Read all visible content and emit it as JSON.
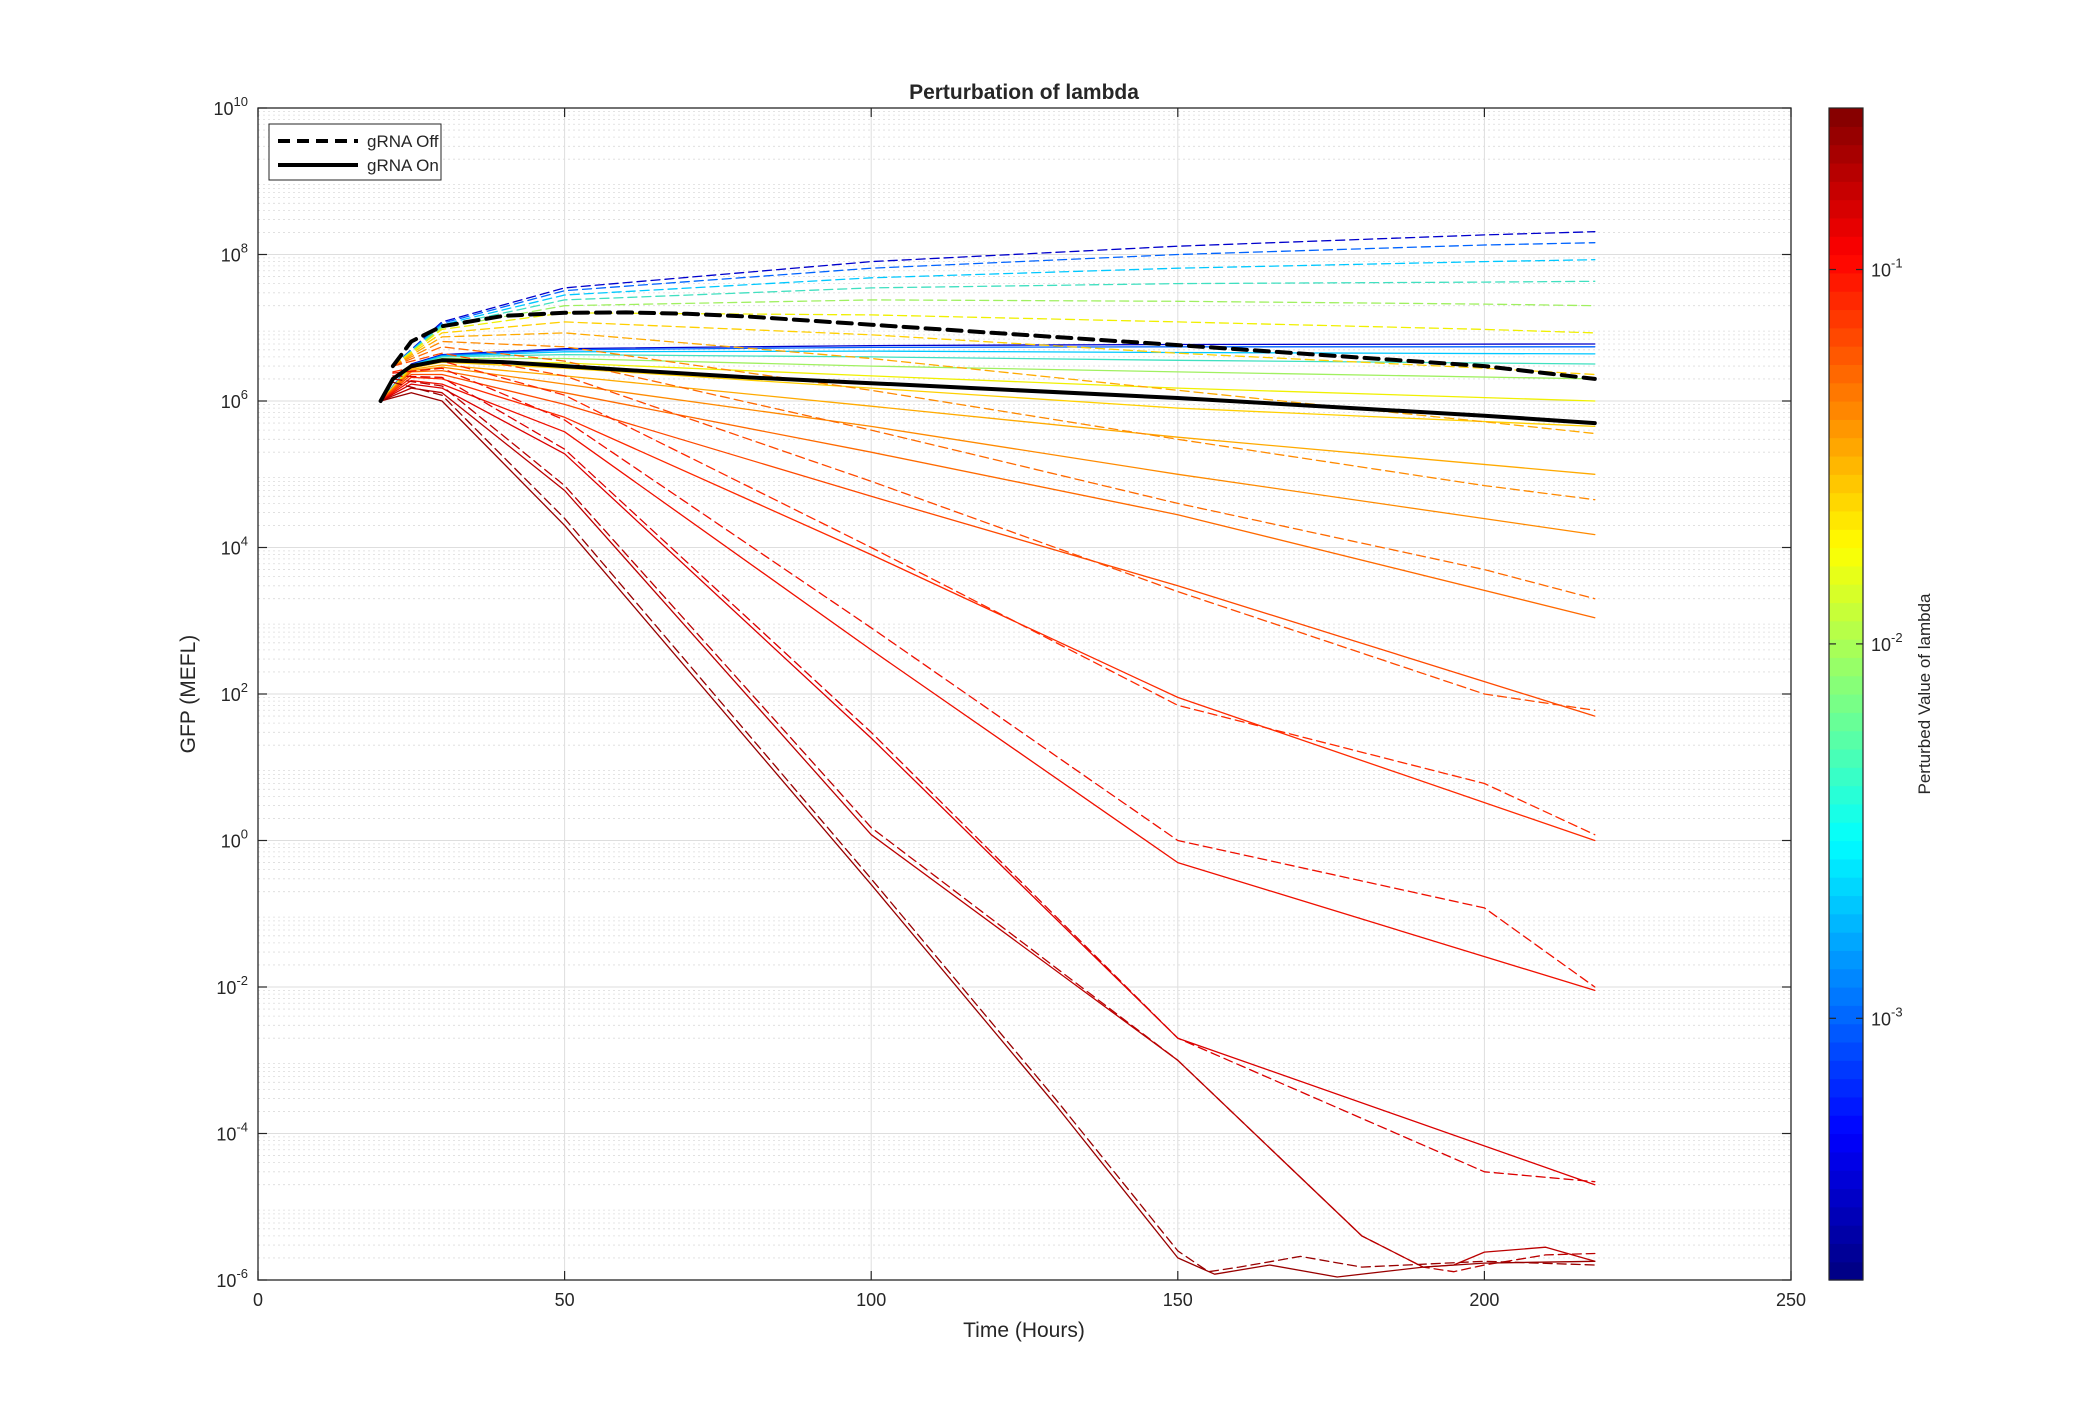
{
  "chart_data": {
    "type": "line",
    "title": "Perturbation of lambda",
    "xlabel": "Time (Hours)",
    "ylabel": "GFP (MEFL)",
    "xlim": [
      0,
      250
    ],
    "ylim": [
      1e-06,
      10000000000.0
    ],
    "yscale": "log",
    "grid": true,
    "minor_grid": true,
    "xticks": [
      0,
      50,
      100,
      150,
      200,
      250
    ],
    "xtick_labels": [
      "0",
      "50",
      "100",
      "150",
      "200",
      "250"
    ],
    "yticks": [
      {
        "base": "10",
        "exp": "-6"
      },
      {
        "base": "10",
        "exp": "-4"
      },
      {
        "base": "10",
        "exp": "-2"
      },
      {
        "base": "10",
        "exp": "0"
      },
      {
        "base": "10",
        "exp": "2"
      },
      {
        "base": "10",
        "exp": "4"
      },
      {
        "base": "10",
        "exp": "6"
      },
      {
        "base": "10",
        "exp": "8"
      },
      {
        "base": "10",
        "exp": "10"
      }
    ],
    "legend": {
      "placement": "top-left",
      "entries": [
        {
          "label": "gRNA Off",
          "style": "dashed",
          "color": "#000000"
        },
        {
          "label": "gRNA On",
          "style": "solid",
          "color": "#000000"
        }
      ]
    },
    "colorbar": {
      "label": "Perturbed Value of lambda",
      "scale": "log",
      "colormap": "jet",
      "range": [
        0.0002,
        0.27
      ],
      "ticks": [
        {
          "value": 0.001,
          "base": "10",
          "exp": "-3"
        },
        {
          "value": 0.01,
          "base": "10",
          "exp": "-2"
        },
        {
          "value": 0.1,
          "base": "10",
          "exp": "-1"
        }
      ]
    },
    "series": [
      {
        "style": "dashed",
        "color": "#000000",
        "bold": true,
        "x": [
          22,
          25,
          30,
          40,
          50,
          60,
          70,
          80,
          100,
          120,
          150,
          200,
          218
        ],
        "y": [
          3000000.0,
          6500000.0,
          10500000.0,
          14500000.0,
          16000000.0,
          16200000.0,
          15500000.0,
          14200000.0,
          11000000.0,
          8500000.0,
          5800000.0,
          3000000.0,
          2000000.0
        ]
      },
      {
        "style": "solid",
        "color": "#000000",
        "bold": true,
        "x": [
          20,
          22,
          25,
          30,
          40,
          50,
          60,
          80,
          100,
          150,
          200,
          218
        ],
        "y": [
          1000000.0,
          2000000.0,
          3000000.0,
          3600000.0,
          3400000.0,
          3000000.0,
          2650000.0,
          2100000.0,
          1750000.0,
          1100000.0,
          630000.0,
          500000.0
        ]
      },
      {
        "style": "dashed",
        "color": "#0000cc",
        "lambda": 0.0002,
        "x": [
          22,
          30,
          50,
          100,
          150,
          200,
          218
        ],
        "y": [
          3000000.0,
          12000000.0,
          35000000.0,
          80000000.0,
          130000000.0,
          185000000.0,
          205000000.0
        ]
      },
      {
        "style": "solid",
        "color": "#0000cc",
        "lambda": 0.0002,
        "x": [
          20,
          25,
          30,
          50,
          100,
          150,
          218
        ],
        "y": [
          1000000.0,
          3200000.0,
          4300000.0,
          5200000.0,
          5700000.0,
          5900000.0,
          6000000.0
        ]
      },
      {
        "style": "dashed",
        "color": "#0064ff",
        "lambda": 0.0008,
        "x": [
          22,
          30,
          50,
          100,
          150,
          200,
          218
        ],
        "y": [
          3000000.0,
          11500000.0,
          32000000.0,
          65000000.0,
          100000000.0,
          135000000.0,
          145000000.0
        ]
      },
      {
        "style": "solid",
        "color": "#0064ff",
        "lambda": 0.0008,
        "x": [
          20,
          25,
          30,
          50,
          100,
          150,
          218
        ],
        "y": [
          1000000.0,
          3100000.0,
          4200000.0,
          5000000.0,
          5400000.0,
          5500000.0,
          5500000.0
        ]
      },
      {
        "style": "dashed",
        "color": "#00c8ff",
        "lambda": 0.002,
        "x": [
          22,
          30,
          50,
          100,
          150,
          200,
          218
        ],
        "y": [
          3000000.0,
          11000000.0,
          28000000.0,
          48000000.0,
          65000000.0,
          80000000.0,
          85000000.0
        ]
      },
      {
        "style": "solid",
        "color": "#00c8ff",
        "lambda": 0.002,
        "x": [
          20,
          25,
          30,
          50,
          100,
          150,
          218
        ],
        "y": [
          1000000.0,
          3100000.0,
          4100000.0,
          4700000.0,
          4800000.0,
          4600000.0,
          4400000.0
        ]
      },
      {
        "style": "dashed",
        "color": "#40e0c0",
        "lambda": 0.004,
        "x": [
          22,
          30,
          50,
          100,
          150,
          200,
          218
        ],
        "y": [
          3000000.0,
          10500000.0,
          24000000.0,
          35000000.0,
          40000000.0,
          42000000.0,
          43000000.0
        ]
      },
      {
        "style": "solid",
        "color": "#40e0c0",
        "lambda": 0.004,
        "x": [
          20,
          25,
          30,
          50,
          100,
          150,
          218
        ],
        "y": [
          1000000.0,
          3000000.0,
          4000000.0,
          4300000.0,
          4000000.0,
          3600000.0,
          3200000.0
        ]
      },
      {
        "style": "dashed",
        "color": "#a0f060",
        "lambda": 0.008,
        "x": [
          22,
          30,
          50,
          100,
          150,
          200,
          218
        ],
        "y": [
          3000000.0,
          10000000.0,
          20000000.0,
          24000000.0,
          23000000.0,
          21000000.0,
          20000000.0
        ]
      },
      {
        "style": "solid",
        "color": "#a0f060",
        "lambda": 0.008,
        "x": [
          20,
          25,
          30,
          50,
          100,
          150,
          218
        ],
        "y": [
          1000000.0,
          3000000.0,
          3800000.0,
          3800000.0,
          3000000.0,
          2500000.0,
          2000000.0
        ]
      },
      {
        "style": "dashed",
        "color": "#f0f000",
        "lambda": 0.016,
        "x": [
          22,
          30,
          50,
          100,
          150,
          200,
          218
        ],
        "y": [
          3000000.0,
          9500000.0,
          16000000.0,
          15000000.0,
          12000000.0,
          9500000.0,
          8500000.0
        ]
      },
      {
        "style": "solid",
        "color": "#f0f000",
        "lambda": 0.016,
        "x": [
          20,
          25,
          30,
          50,
          100,
          150,
          218
        ],
        "y": [
          1000000.0,
          2900000.0,
          3600000.0,
          3300000.0,
          2200000.0,
          1500000.0,
          1000000.0
        ]
      },
      {
        "style": "dashed",
        "color": "#ffd000",
        "lambda": 0.025,
        "x": [
          22,
          30,
          50,
          100,
          150,
          200,
          218
        ],
        "y": [
          3000000.0,
          8500000.0,
          12000000.0,
          8000000.0,
          4500000.0,
          2800000.0,
          2300000.0
        ]
      },
      {
        "style": "solid",
        "color": "#ffd000",
        "lambda": 0.025,
        "x": [
          20,
          25,
          30,
          50,
          100,
          150,
          218
        ],
        "y": [
          1000000.0,
          2800000.0,
          3400000.0,
          2800000.0,
          1500000.0,
          800000.0,
          450000.0
        ]
      },
      {
        "style": "dashed",
        "color": "#ffaa00",
        "lambda": 0.035,
        "x": [
          22,
          30,
          50,
          100,
          150,
          200,
          218
        ],
        "y": [
          3000000.0,
          7500000.0,
          8500000.0,
          3800000.0,
          1400000.0,
          520000.0,
          360000.0
        ]
      },
      {
        "style": "solid",
        "color": "#ffaa00",
        "lambda": 0.035,
        "x": [
          20,
          25,
          30,
          50,
          100,
          150,
          218
        ],
        "y": [
          1000000.0,
          2700000.0,
          3100000.0,
          2200000.0,
          850000.0,
          320000.0,
          100000.0
        ]
      },
      {
        "style": "dashed",
        "color": "#ff8a00",
        "lambda": 0.045,
        "x": [
          22,
          30,
          50,
          100,
          150,
          200,
          218
        ],
        "y": [
          3000000.0,
          6500000.0,
          5500000.0,
          1400000.0,
          300000.0,
          70000.0,
          45000.0
        ]
      },
      {
        "style": "solid",
        "color": "#ff8a00",
        "lambda": 0.045,
        "x": [
          20,
          25,
          30,
          50,
          100,
          150,
          218
        ],
        "y": [
          1000000.0,
          2600000.0,
          2900000.0,
          1700000.0,
          450000.0,
          100000.0,
          15000.0
        ]
      },
      {
        "style": "dashed",
        "color": "#ff6a00",
        "lambda": 0.06,
        "x": [
          22,
          30,
          50,
          100,
          150,
          200,
          218
        ],
        "y": [
          3000000.0,
          5500000.0,
          3500000.0,
          400000.0,
          40000.0,
          5000.0,
          2000.0
        ]
      },
      {
        "style": "solid",
        "color": "#ff6a00",
        "lambda": 0.06,
        "x": [
          20,
          25,
          30,
          50,
          100,
          150,
          218
        ],
        "y": [
          1000000.0,
          2500000.0,
          2600000.0,
          1300000.0,
          200000.0,
          28000.0,
          1100.0
        ]
      },
      {
        "style": "dashed",
        "color": "#ff4a00",
        "lambda": 0.08,
        "x": [
          22,
          30,
          50,
          100,
          150,
          200,
          218
        ],
        "y": [
          3000000.0,
          4500000.0,
          2200000.0,
          80000.0,
          2500.0,
          100.0,
          60.0
        ]
      },
      {
        "style": "solid",
        "color": "#ff4a00",
        "lambda": 0.08,
        "x": [
          20,
          25,
          30,
          50,
          100,
          150,
          218
        ],
        "y": [
          1000000.0,
          2300000.0,
          2300000.0,
          900000.0,
          50000.0,
          3000.0,
          50.0
        ]
      },
      {
        "style": "dashed",
        "color": "#ff2a00",
        "lambda": 0.1,
        "x": [
          22,
          30,
          50,
          100,
          150,
          200,
          218
        ],
        "y": [
          2500000.0,
          3500000.0,
          1200000.0,
          10000.0,
          70.0,
          6.0,
          1.2
        ]
      },
      {
        "style": "solid",
        "color": "#ff2a00",
        "lambda": 0.1,
        "x": [
          20,
          25,
          30,
          50,
          100,
          150,
          218
        ],
        "y": [
          1000000.0,
          2100000.0,
          2000000.0,
          600000.0,
          8000.0,
          90.0,
          1.0
        ]
      },
      {
        "style": "dashed",
        "color": "#f01000",
        "lambda": 0.13,
        "x": [
          22,
          30,
          50,
          100,
          150,
          200,
          218
        ],
        "y": [
          2400000.0,
          2800000.0,
          550000.0,
          800.0,
          1.0,
          0.12,
          0.01
        ]
      },
      {
        "style": "solid",
        "color": "#f01000",
        "lambda": 0.13,
        "x": [
          20,
          25,
          30,
          50,
          100,
          150,
          218
        ],
        "y": [
          1000000.0,
          1900000.0,
          1700000.0,
          380000.0,
          400.0,
          0.5,
          0.009
        ]
      },
      {
        "style": "dashed",
        "color": "#dc0000",
        "lambda": 0.17,
        "x": [
          22,
          30,
          50,
          100,
          150,
          200,
          218
        ],
        "y": [
          2200000.0,
          2100000.0,
          220000.0,
          30.0,
          0.002,
          3e-05,
          2.2e-05
        ]
      },
      {
        "style": "solid",
        "color": "#dc0000",
        "lambda": 0.17,
        "x": [
          20,
          25,
          30,
          50,
          100,
          150,
          218
        ],
        "y": [
          1000000.0,
          1700000.0,
          1500000.0,
          190000.0,
          25.0,
          0.002,
          2e-05
        ]
      },
      {
        "style": "dashed",
        "color": "#bb0000",
        "lambda": 0.21,
        "x": [
          22,
          30,
          50,
          100,
          150,
          180,
          190,
          195,
          200,
          210,
          218
        ],
        "y": [
          2000000.0,
          1600000.0,
          70000.0,
          1.5,
          0.001,
          4e-06,
          1.5e-06,
          1.3e-06,
          1.6e-06,
          2.2e-06,
          2.3e-06
        ]
      },
      {
        "style": "solid",
        "color": "#bb0000",
        "lambda": 0.21,
        "x": [
          20,
          25,
          30,
          50,
          100,
          150,
          180,
          190,
          195,
          200,
          210,
          218
        ],
        "y": [
          1000000.0,
          1500000.0,
          1300000.0,
          60000.0,
          1.2,
          0.001,
          4e-06,
          1.5e-06,
          1.6e-06,
          2.4e-06,
          2.8e-06,
          1.8e-06
        ]
      },
      {
        "style": "dashed",
        "color": "#990000",
        "lambda": 0.27,
        "x": [
          22,
          30,
          50,
          100,
          130,
          150,
          155,
          160,
          170,
          180,
          200,
          218
        ],
        "y": [
          1800000.0,
          1200000.0,
          25000.0,
          0.3,
          0.0003,
          2.5e-06,
          1.3e-06,
          1.5e-06,
          2.1e-06,
          1.5e-06,
          1.8e-06,
          1.6e-06
        ]
      },
      {
        "style": "solid",
        "color": "#990000",
        "lambda": 0.27,
        "x": [
          20,
          25,
          30,
          50,
          100,
          130,
          150,
          156,
          165,
          176,
          190,
          200,
          218
        ],
        "y": [
          1000000.0,
          1300000.0,
          1000000.0,
          20000.0,
          0.25,
          0.00025,
          2e-06,
          1.2e-06,
          1.6e-06,
          1.1e-06,
          1.5e-06,
          1.7e-06,
          1.8e-06
        ]
      }
    ]
  }
}
